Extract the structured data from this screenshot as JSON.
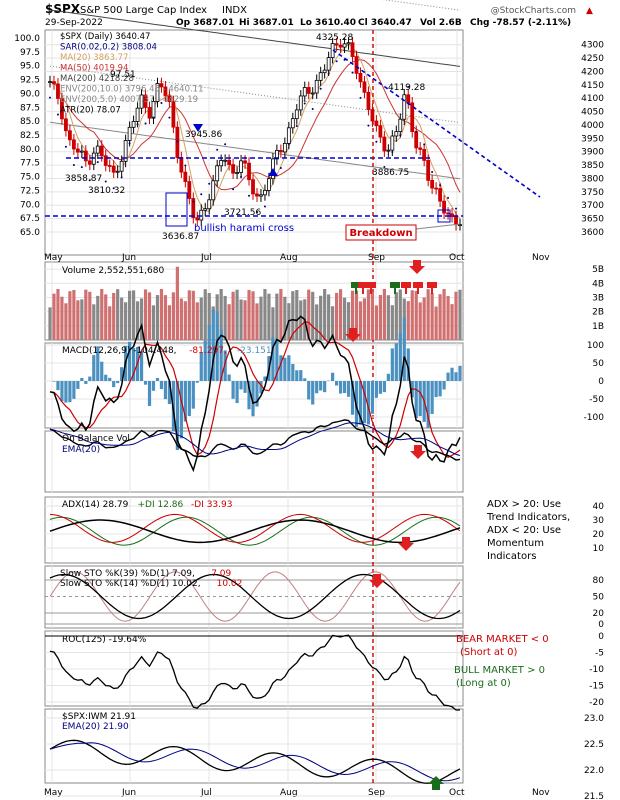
{
  "header": {
    "ticker": "$SPX",
    "name": "S&P 500 Large Cap Index",
    "exchange": "INDX",
    "watermark": "@StockCharts.com",
    "date": "29-Sep-2022",
    "open": "Op 3687.01",
    "high": "Hi 3687.01",
    "low": "Lo 3610.40",
    "close": "Cl 3640.47",
    "volume": "Vol 2.6B",
    "change": "Chg -78.57 (-2.11%)"
  },
  "colors": {
    "up": "#000000",
    "down": "#cc0000",
    "blue": "#0000cc",
    "sar": "#000080",
    "ma20": "#d4a060",
    "ma50": "#cc3333",
    "ma200": "#444444",
    "env200": "#888888",
    "grid": "#e4e4e4",
    "histo": "#4a90c0",
    "red_arrow": "#e02020",
    "green_arrow": "#1a6e1a",
    "annotation_red": "#cc0000",
    "annotation_green": "#1a6e1a"
  },
  "x_labels": [
    "May",
    "Jun",
    "Jul",
    "Aug",
    "Sep",
    "Oct",
    "Nov"
  ],
  "price_panel": {
    "legend": [
      {
        "text": "$SPX (Daily) 3640.47",
        "color": "#000000"
      },
      {
        "text": "SAR(0.02,0.2) 3808.04",
        "color": "#000080"
      },
      {
        "text": "MA(20) 3863.77",
        "color": "#d4a060"
      },
      {
        "text": "MA(50) 4019.94",
        "color": "#cc3333"
      },
      {
        "text": "MA(200) 4218.28",
        "color": "#444444"
      },
      {
        "text": "ENV(200,10.0) 3796.45 - 4640.11",
        "color": "#888888"
      },
      {
        "text": "ENV(200,5.0) 4007.37 - 4429.19",
        "color": "#888888"
      },
      {
        "text": "ATR(20) 78.07",
        "color": "#000000"
      }
    ],
    "left_ticks": [
      "100.0",
      "97.5",
      "95.0",
      "92.5",
      "90.0",
      "87.5",
      "85.0",
      "82.5",
      "80.0",
      "77.5",
      "75.0",
      "72.5",
      "70.0",
      "67.5",
      "65.0"
    ],
    "right_ticks": [
      "4300",
      "4250",
      "4200",
      "4150",
      "4100",
      "4050",
      "4000",
      "3950",
      "3900",
      "3850",
      "3800",
      "3750",
      "3700",
      "3650",
      "3600"
    ],
    "price_labels": [
      "3858.87",
      "3810.32",
      "3636.87",
      "3721.56",
      "3945.86",
      "4325.28",
      "4119.28",
      "3886.75",
      "97.51"
    ],
    "annotation": "bullish harami cross",
    "breakdown": "Breakdown"
  },
  "volume_panel": {
    "legend": "Volume 2,552,551,680",
    "right_ticks": [
      "5B",
      "4B",
      "3B",
      "2B",
      "1B"
    ]
  },
  "macd_panel": {
    "legend": [
      {
        "text": "MACD(12,26,9) -104.448, ",
        "color": "#000000"
      },
      {
        "text": "-81.297, ",
        "color": "#cc0000"
      },
      {
        "text": "-23.151",
        "color": "#4a90c0"
      }
    ],
    "right_ticks": [
      "100",
      "50",
      "0",
      "-50",
      "-100"
    ]
  },
  "obv_panel": {
    "legend": [
      "On Balance Vol",
      "EMA(20)"
    ]
  },
  "adx_panel": {
    "legend": [
      {
        "text": "ADX(14) 28.79",
        "color": "#000000"
      },
      {
        "text": "+DI 12.86",
        "color": "#1a6e1a"
      },
      {
        "text": "-DI 33.93",
        "color": "#cc0000"
      }
    ],
    "right_ticks": [
      "40",
      "30",
      "20",
      "10"
    ],
    "note_lines": [
      "ADX > 20: Use",
      "Trend Indicators,",
      "ADX < 20: Use",
      "Momentum",
      "Indicators"
    ]
  },
  "sto_panel": {
    "legend": [
      {
        "text": "Slow STO %K(39) %D(1) 7.09, ",
        "color": "#000000"
      },
      {
        "text": "7.09",
        "color": "#cc0000"
      }
    ],
    "legend2": [
      {
        "text": "Slow STO %K(14) %D(1) 10.02, ",
        "color": "#000000"
      },
      {
        "text": "10.02",
        "color": "#cc0000"
      }
    ],
    "right_ticks": [
      "80",
      "50",
      "20",
      "0"
    ]
  },
  "roc_panel": {
    "legend": "ROC(125) -19.64%",
    "right_ticks": [
      "0",
      "-5",
      "-10",
      "-15",
      "-20"
    ],
    "bear_lines": [
      "BEAR MARKET < 0",
      "(Short at 0)"
    ],
    "bull_lines": [
      "BULL MARKET > 0",
      "(Long at 0)"
    ]
  },
  "ratio_panel": {
    "legend": "$SPX:IWM 21.91",
    "legend2": "EMA(20) 21.90",
    "right_ticks": [
      "23.0",
      "22.5",
      "22.0",
      "21.5"
    ]
  },
  "chart_data": {
    "type": "line",
    "title": "$SPX S&P 500 Large Cap Index INDX",
    "x_labels": [
      "May",
      "Jun",
      "Jul",
      "Aug",
      "Sep",
      "Oct",
      "Nov"
    ],
    "price_anchors": [
      [
        "May",
        4150
      ],
      [
        "May",
        4100
      ],
      [
        "May",
        3940
      ],
      [
        "May",
        3900
      ],
      [
        "May",
        3858.87
      ],
      [
        "May",
        3920
      ],
      [
        "May",
        3860
      ],
      [
        "May",
        3810.32
      ],
      [
        "May",
        3900
      ],
      [
        "May",
        4000
      ],
      [
        "May",
        4100
      ],
      [
        "Jun",
        4050
      ],
      [
        "Jun",
        4150
      ],
      [
        "Jun",
        4100
      ],
      [
        "Jun",
        3900
      ],
      [
        "Jun",
        3740
      ],
      [
        "Jun",
        3636.87
      ],
      [
        "Jun",
        3700
      ],
      [
        "Jun",
        3780
      ],
      [
        "Jun",
        3900
      ],
      [
        "Jul",
        3820
      ],
      [
        "Jul",
        3860
      ],
      [
        "Jul",
        3780
      ],
      [
        "Jul",
        3721.56
      ],
      [
        "Jul",
        3800
      ],
      [
        "Jul",
        3900
      ],
      [
        "Jul",
        3960
      ],
      [
        "Jul",
        4060
      ],
      [
        "Aug",
        4120
      ],
      [
        "Aug",
        4150
      ],
      [
        "Aug",
        4200
      ],
      [
        "Aug",
        4280
      ],
      [
        "Aug",
        4325.28
      ],
      [
        "Aug",
        4280
      ],
      [
        "Aug",
        4150
      ],
      [
        "Aug",
        4080
      ],
      [
        "Sep",
        3960
      ],
      [
        "Sep",
        3886.75
      ],
      [
        "Sep",
        3990
      ],
      [
        "Sep",
        4119.28
      ],
      [
        "Sep",
        3930
      ],
      [
        "Sep",
        3880
      ],
      [
        "Sep",
        3760
      ],
      [
        "Sep",
        3693
      ],
      [
        "Sep",
        3655
      ],
      [
        "Sep",
        3640.47
      ]
    ],
    "last_close": 3640.47,
    "ylim": [
      3580,
      4350
    ],
    "series": [
      {
        "name": "$SPX (Daily)",
        "last": 3640.47
      },
      {
        "name": "SAR(0.02,0.2)",
        "last": 3808.04
      },
      {
        "name": "MA(20)",
        "last": 3863.77
      },
      {
        "name": "MA(50)",
        "last": 4019.94
      },
      {
        "name": "MA(200)",
        "last": 4218.28
      },
      {
        "name": "ATR(20)",
        "last": 78.07
      },
      {
        "name": "Volume",
        "last": 2552551680
      },
      {
        "name": "MACD(12,26,9)",
        "last": -104.448
      },
      {
        "name": "ADX(14)",
        "last": 28.79
      },
      {
        "name": "Slow STO %K(39)",
        "last": 7.09
      },
      {
        "name": "Slow STO %K(14)",
        "last": 10.02
      },
      {
        "name": "ROC(125)",
        "last": -19.64
      },
      {
        "name": "$SPX:IWM",
        "last": 21.91
      },
      {
        "name": "EMA(20)",
        "last": 21.9
      }
    ],
    "grid": true
  }
}
